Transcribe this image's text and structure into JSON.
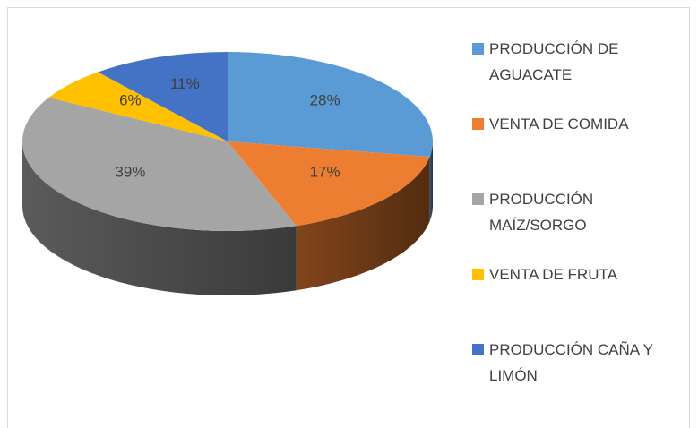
{
  "chart_data": {
    "type": "pie3d",
    "categories": [
      "PRODUCCIÓN DE AGUACATE",
      "VENTA DE COMIDA",
      "PRODUCCIÓN MAÍZ/SORGO",
      "VENTA DE FRUTA",
      "PRODUCCIÓN CAÑA Y LIMÓN"
    ],
    "values": [
      28,
      17,
      39,
      6,
      11
    ],
    "value_labels": [
      "28%",
      "17%",
      "39%",
      "6%",
      "11%"
    ],
    "colors": [
      "#5b9bd5",
      "#ed7d31",
      "#a5a5a5",
      "#ffc000",
      "#4472c4"
    ],
    "legend": "right"
  }
}
